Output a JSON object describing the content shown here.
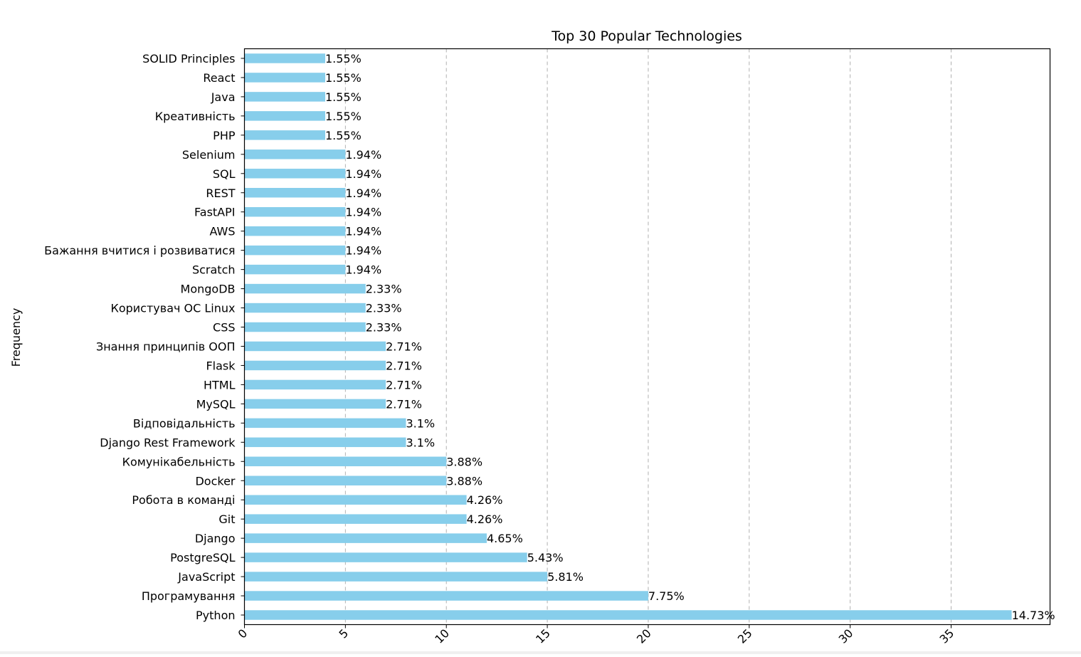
{
  "chart_data": {
    "type": "bar",
    "orientation": "horizontal",
    "title": "Top 30 Popular Technologies",
    "xlabel": "",
    "ylabel": "Frequency",
    "xlim": [
      0,
      39.9
    ],
    "xticks": [
      0,
      5,
      10,
      15,
      20,
      25,
      30,
      35
    ],
    "xtick_labels": [
      "0",
      "5",
      "10",
      "15",
      "20",
      "25",
      "30",
      "35"
    ],
    "grid": "x-dashed",
    "bar_color": "#87ceeb",
    "grid_color": "#b0b0b0",
    "categories": [
      "Python",
      "Програмування",
      "JavaScript",
      "PostgreSQL",
      "Django",
      "Git",
      "Робота в команді",
      "Docker",
      "Комунікабельність",
      "Django Rest Framework",
      "Відповідальність",
      "MySQL",
      "HTML",
      "Flask",
      "Знання принципів ООП",
      "CSS",
      "Користувач ОС Linux",
      "MongoDB",
      "Scratch",
      "Бажання вчитися і розвиватися",
      "AWS",
      "FastAPI",
      "REST",
      "SQL",
      "Selenium",
      "PHP",
      "Креативність",
      "Java",
      "React",
      "SOLID Principles"
    ],
    "values": [
      38,
      20,
      15,
      14,
      12,
      11,
      11,
      10,
      10,
      8,
      8,
      7,
      7,
      7,
      7,
      6,
      6,
      6,
      5,
      5,
      5,
      5,
      5,
      5,
      5,
      4,
      4,
      4,
      4,
      4
    ],
    "labels": [
      "14.73%",
      "7.75%",
      "5.81%",
      "5.43%",
      "4.65%",
      "4.26%",
      "4.26%",
      "3.88%",
      "3.88%",
      "3.1%",
      "3.1%",
      "2.71%",
      "2.71%",
      "2.71%",
      "2.71%",
      "2.33%",
      "2.33%",
      "2.33%",
      "1.94%",
      "1.94%",
      "1.94%",
      "1.94%",
      "1.94%",
      "1.94%",
      "1.94%",
      "1.55%",
      "1.55%",
      "1.55%",
      "1.55%",
      "1.55%"
    ]
  }
}
